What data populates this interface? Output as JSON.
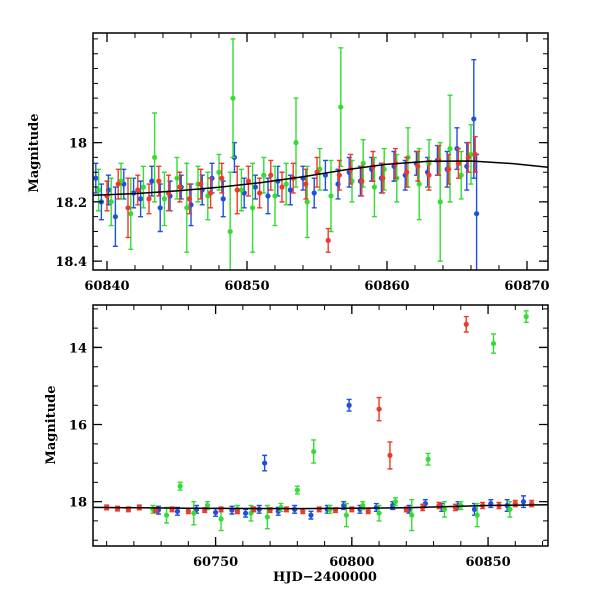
{
  "chart_data": [
    {
      "type": "scatter",
      "title": "",
      "xlabel": "",
      "ylabel": "Magnitude",
      "xlim": [
        60839,
        60871.5
      ],
      "ylim": [
        18.43,
        17.63
      ],
      "y_inverted": true,
      "xticks": [
        60840,
        60850,
        60860,
        60870
      ],
      "yticks": [
        18.0,
        18.2,
        18.4
      ],
      "colors": {
        "blue": "#1f4fe0",
        "green": "#33dd33",
        "red": "#ee3a2a",
        "model": "#000000"
      },
      "model_curve": {
        "x": [
          60839,
          60842,
          60845,
          60848,
          60851,
          60854,
          60857,
          60860,
          60863,
          60866,
          60869,
          60871.5
        ],
        "y": [
          18.178,
          18.172,
          18.163,
          18.151,
          18.135,
          18.115,
          18.092,
          18.073,
          18.063,
          18.062,
          18.071,
          18.083
        ]
      },
      "series": [
        {
          "color": "blue",
          "x": [
            60839.2,
            60839.6,
            60840.1,
            60840.6,
            60841.2,
            60841.9,
            60842.4,
            60843.2,
            60843.8,
            60844.5,
            60845.3,
            60846.0,
            60846.8,
            60847.5,
            60848.3,
            60849.1,
            60849.8,
            60850.6,
            60851.5,
            60852.2,
            60853.1,
            60854.0,
            60854.8,
            60855.6,
            60856.5,
            60857.3,
            60858.1,
            60858.9,
            60859.6,
            60860.5,
            60861.3,
            60862.1,
            60862.9,
            60863.6,
            60864.3,
            60865.0,
            60865.7,
            60866.2,
            60866.4
          ],
          "y": [
            18.12,
            18.2,
            18.16,
            18.25,
            18.14,
            18.17,
            18.19,
            18.13,
            18.22,
            18.18,
            18.15,
            18.21,
            18.16,
            18.12,
            18.19,
            18.05,
            18.17,
            18.15,
            18.18,
            18.13,
            18.16,
            18.12,
            18.17,
            18.11,
            18.14,
            18.1,
            18.13,
            18.09,
            18.12,
            18.08,
            18.11,
            18.07,
            18.1,
            18.06,
            18.09,
            18.02,
            18.08,
            17.92,
            18.24
          ],
          "err": [
            0.05,
            0.06,
            0.05,
            0.1,
            0.05,
            0.05,
            0.06,
            0.05,
            0.08,
            0.05,
            0.04,
            0.07,
            0.05,
            0.05,
            0.06,
            0.05,
            0.05,
            0.04,
            0.06,
            0.05,
            0.05,
            0.04,
            0.05,
            0.05,
            0.05,
            0.05,
            0.05,
            0.04,
            0.05,
            0.05,
            0.05,
            0.04,
            0.05,
            0.05,
            0.06,
            0.07,
            0.08,
            0.2,
            0.2
          ]
        },
        {
          "color": "green",
          "x": [
            60839.4,
            60840.3,
            60841.0,
            60841.7,
            60842.6,
            60843.4,
            60844.1,
            60845.0,
            60845.7,
            60846.5,
            60847.2,
            60848.0,
            60848.8,
            60849.0,
            60849.6,
            60850.4,
            60851.2,
            60852.0,
            60852.8,
            60853.5,
            60854.3,
            60855.2,
            60856.0,
            60856.7,
            60857.5,
            60858.3,
            60859.1,
            60859.8,
            60860.7,
            60861.5,
            60862.3,
            60863.0,
            60863.8,
            60864.5,
            60865.3,
            60866.0
          ],
          "y": [
            18.16,
            18.2,
            18.13,
            18.24,
            18.15,
            18.05,
            18.19,
            18.12,
            18.22,
            18.14,
            18.18,
            18.1,
            18.3,
            17.85,
            18.16,
            18.22,
            18.11,
            18.18,
            18.14,
            18.0,
            18.2,
            18.09,
            18.18,
            17.88,
            18.13,
            18.07,
            18.15,
            18.09,
            18.12,
            18.05,
            18.14,
            18.07,
            18.2,
            18.02,
            18.11,
            18.04
          ],
          "err": [
            0.07,
            0.08,
            0.06,
            0.12,
            0.07,
            0.15,
            0.09,
            0.07,
            0.15,
            0.06,
            0.08,
            0.06,
            0.2,
            0.2,
            0.07,
            0.15,
            0.06,
            0.1,
            0.07,
            0.15,
            0.12,
            0.07,
            0.12,
            0.2,
            0.07,
            0.08,
            0.1,
            0.07,
            0.08,
            0.1,
            0.12,
            0.08,
            0.2,
            0.18,
            0.08,
            0.1
          ]
        },
        {
          "color": "red",
          "x": [
            60840.0,
            60840.8,
            60841.5,
            60842.2,
            60843.0,
            60843.7,
            60844.4,
            60845.2,
            60845.9,
            60846.7,
            60847.4,
            60848.2,
            60849.3,
            60850.1,
            60850.9,
            60851.7,
            60852.5,
            60853.3,
            60854.2,
            60855.0,
            60855.8,
            60856.6,
            60857.4,
            60858.2,
            60859.0,
            60859.7,
            60860.6,
            60861.4,
            60862.2,
            60863.0,
            60863.7,
            60864.4,
            60865.1,
            60865.8,
            60866.3
          ],
          "y": [
            18.18,
            18.14,
            18.22,
            18.16,
            18.19,
            18.13,
            18.17,
            18.15,
            18.19,
            18.14,
            18.17,
            18.12,
            18.16,
            18.13,
            18.17,
            18.11,
            18.15,
            18.12,
            18.14,
            18.1,
            18.33,
            18.11,
            18.09,
            18.13,
            18.08,
            18.12,
            18.07,
            18.1,
            18.08,
            18.11,
            18.06,
            18.09,
            18.07,
            18.05,
            18.04
          ],
          "err": [
            0.05,
            0.05,
            0.1,
            0.05,
            0.05,
            0.05,
            0.06,
            0.05,
            0.05,
            0.05,
            0.05,
            0.05,
            0.08,
            0.05,
            0.05,
            0.05,
            0.05,
            0.05,
            0.05,
            0.05,
            0.04,
            0.05,
            0.05,
            0.05,
            0.05,
            0.05,
            0.05,
            0.05,
            0.05,
            0.05,
            0.05,
            0.05,
            0.05,
            0.05,
            0.06
          ]
        }
      ]
    },
    {
      "type": "scatter",
      "title": "",
      "xlabel": "HJD−2400000",
      "ylabel": "Magnitude",
      "xlim": [
        60705,
        60872
      ],
      "ylim": [
        19.15,
        12.9
      ],
      "y_inverted": true,
      "xticks": [
        60750,
        60800,
        60850
      ],
      "yticks": [
        14,
        16,
        18
      ],
      "colors": {
        "blue": "#1f4fe0",
        "green": "#33dd33",
        "red": "#ee3a2a",
        "model": "#000000"
      },
      "model_curve": {
        "x": [
          60705,
          60740,
          60780,
          60820,
          60850,
          60872
        ],
        "y": [
          18.15,
          18.17,
          18.18,
          18.16,
          18.1,
          18.08
        ]
      },
      "series": [
        {
          "color": "blue",
          "x": [
            60729,
            60736,
            60743,
            60750,
            60756,
            60761,
            60766,
            60768,
            60773,
            60779,
            60785,
            60791,
            60797,
            60799,
            60803,
            60809,
            60815,
            60821,
            60827,
            60833,
            60839,
            60845,
            60851,
            60857,
            60863
          ],
          "y": [
            18.22,
            18.25,
            18.2,
            18.28,
            18.22,
            18.3,
            18.2,
            17.0,
            18.25,
            18.2,
            18.35,
            18.2,
            18.1,
            15.5,
            18.2,
            18.15,
            18.1,
            18.2,
            18.05,
            18.15,
            18.1,
            18.2,
            18.05,
            18.1,
            18.0
          ],
          "err": [
            0.1,
            0.1,
            0.1,
            0.1,
            0.1,
            0.1,
            0.1,
            0.2,
            0.1,
            0.1,
            0.1,
            0.1,
            0.1,
            0.15,
            0.1,
            0.1,
            0.1,
            0.1,
            0.1,
            0.1,
            0.1,
            0.15,
            0.1,
            0.15,
            0.15
          ]
        },
        {
          "color": "green",
          "x": [
            60727,
            60732,
            60737,
            60742,
            60747,
            60752,
            60758,
            60763,
            60769,
            60774,
            60780,
            60786,
            60792,
            60798,
            60804,
            60810,
            60816,
            60822,
            60828,
            60834,
            60840,
            60846,
            60852,
            60858,
            60864
          ],
          "y": [
            18.2,
            18.35,
            17.6,
            18.3,
            18.1,
            18.45,
            18.2,
            18.3,
            18.4,
            18.15,
            17.7,
            16.7,
            18.2,
            18.35,
            18.1,
            18.3,
            18.0,
            18.35,
            16.9,
            18.2,
            18.1,
            18.35,
            13.9,
            18.2,
            13.2
          ],
          "err": [
            0.1,
            0.2,
            0.1,
            0.3,
            0.1,
            0.3,
            0.1,
            0.2,
            0.3,
            0.1,
            0.1,
            0.3,
            0.1,
            0.3,
            0.1,
            0.2,
            0.1,
            0.4,
            0.15,
            0.2,
            0.1,
            0.3,
            0.25,
            0.2,
            0.15
          ]
        },
        {
          "color": "red",
          "x": [
            60710,
            60714,
            60718,
            60722,
            60728,
            60734,
            60740,
            60746,
            60752,
            60758,
            60764,
            60770,
            60776,
            60782,
            60788,
            60794,
            60800,
            60806,
            60810,
            60814,
            60820,
            60826,
            60832,
            60838,
            60842,
            60848,
            60854,
            60860,
            60866
          ],
          "y": [
            18.15,
            18.18,
            18.2,
            18.15,
            18.22,
            18.2,
            18.25,
            18.22,
            18.2,
            18.25,
            18.2,
            18.22,
            18.2,
            18.25,
            18.2,
            18.22,
            18.2,
            18.25,
            15.6,
            16.8,
            18.2,
            18.15,
            18.1,
            18.15,
            13.4,
            18.1,
            18.1,
            18.05,
            18.05
          ],
          "err": [
            0.06,
            0.06,
            0.06,
            0.06,
            0.06,
            0.06,
            0.06,
            0.06,
            0.06,
            0.06,
            0.06,
            0.06,
            0.06,
            0.06,
            0.06,
            0.06,
            0.06,
            0.06,
            0.3,
            0.35,
            0.06,
            0.08,
            0.08,
            0.08,
            0.2,
            0.08,
            0.08,
            0.08,
            0.08
          ]
        }
      ]
    }
  ]
}
